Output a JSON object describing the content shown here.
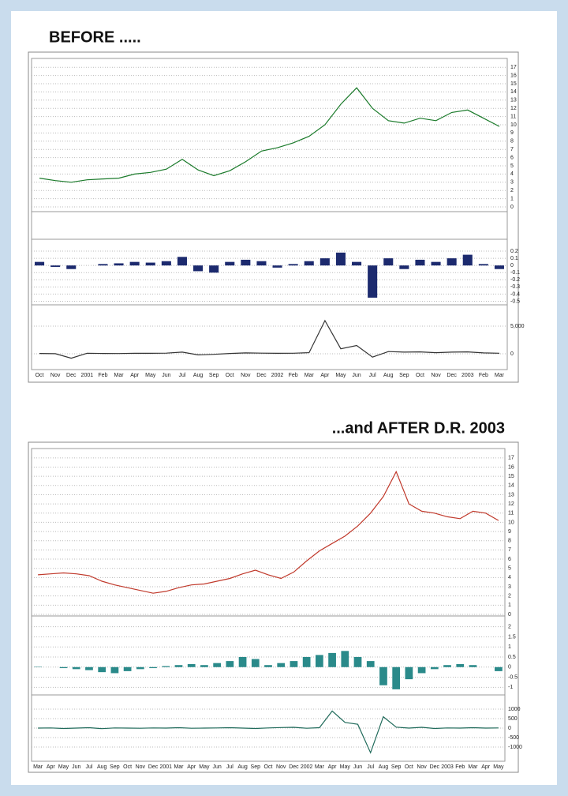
{
  "header": {
    "before": "BEFORE .....",
    "after": "...and AFTER D.R. 2003"
  },
  "chart_data": [
    {
      "type": "line",
      "color": "#1a7a2a",
      "ylim": [
        0,
        17.5
      ],
      "yticks": [
        0,
        1,
        2,
        3,
        4,
        5,
        6,
        7,
        8,
        9,
        10,
        11,
        12,
        13,
        14,
        15,
        16,
        17
      ],
      "grid": true,
      "values": [
        3.5,
        3.2,
        3.0,
        3.3,
        3.4,
        3.5,
        4.0,
        4.2,
        4.6,
        5.8,
        4.5,
        3.8,
        4.4,
        5.5,
        6.8,
        7.2,
        7.8,
        8.6,
        10.0,
        12.5,
        14.5,
        12.0,
        10.5,
        10.2,
        10.8,
        10.5,
        11.5,
        11.8,
        10.8,
        9.8
      ]
    },
    {
      "type": "bar",
      "color": "#1c2a6e",
      "ylim": [
        -0.55,
        0.3
      ],
      "yticks": [
        -0.5,
        -0.4,
        -0.3,
        -0.2,
        -0.1,
        0,
        0.1,
        0.2
      ],
      "grid": true,
      "values": [
        0.05,
        -0.02,
        -0.05,
        0,
        0.02,
        0.03,
        0.05,
        0.04,
        0.06,
        0.12,
        -0.08,
        -0.1,
        0.05,
        0.08,
        0.06,
        -0.03,
        0.02,
        0.06,
        0.1,
        0.18,
        0.05,
        -0.45,
        0.1,
        -0.05,
        0.08,
        0.05,
        0.1,
        0.15,
        0.02,
        -0.05
      ]
    },
    {
      "type": "line",
      "color": "#333333",
      "ylim": [
        -2000,
        8000
      ],
      "yticks": [
        0,
        {
          "value": 5000,
          "label": "5,000"
        }
      ],
      "grid": true,
      "values": [
        50,
        20,
        -800,
        100,
        60,
        40,
        80,
        90,
        120,
        300,
        -200,
        -100,
        60,
        150,
        120,
        80,
        100,
        200,
        6000,
        900,
        1500,
        -600,
        400,
        300,
        350,
        200,
        300,
        350,
        150,
        100
      ],
      "categories": [
        "Oct",
        "Nov",
        "Dec",
        "2001",
        "Feb",
        "Mar",
        "Apr",
        "May",
        "Jun",
        "Jul",
        "Aug",
        "Sep",
        "Oct",
        "Nov",
        "Dec",
        "2002",
        "Feb",
        "Mar",
        "Apr",
        "May",
        "Jun",
        "Jul",
        "Aug",
        "Sep",
        "Oct",
        "Nov",
        "Dec",
        "2003",
        "Feb",
        "Mar"
      ]
    },
    {
      "type": "line",
      "color": "#c0392b",
      "ylim": [
        0,
        17.5
      ],
      "yticks": [
        0,
        1,
        2,
        3,
        4,
        5,
        6,
        7,
        8,
        9,
        10,
        11,
        12,
        13,
        14,
        15,
        16,
        17
      ],
      "grid": true,
      "values": [
        4.3,
        4.4,
        4.5,
        4.4,
        4.2,
        3.6,
        3.2,
        2.9,
        2.6,
        2.3,
        2.5,
        2.9,
        3.2,
        3.3,
        3.6,
        3.9,
        4.4,
        4.8,
        4.3,
        3.9,
        4.6,
        5.8,
        6.9,
        7.7,
        8.5,
        9.6,
        11.0,
        12.8,
        15.5,
        12.0,
        11.2,
        11.0,
        10.6,
        10.4,
        11.2,
        11.0,
        10.2
      ]
    },
    {
      "type": "bar",
      "color": "#2a8a8a",
      "ylim": [
        -1.3,
        2.3
      ],
      "yticks": [
        -1.0,
        -0.5,
        0,
        0.5,
        1.0,
        1.5,
        2.0
      ],
      "grid": true,
      "values": [
        0.02,
        0.0,
        -0.05,
        -0.1,
        -0.15,
        -0.25,
        -0.3,
        -0.2,
        -0.1,
        -0.05,
        0.05,
        0.1,
        0.15,
        0.1,
        0.2,
        0.3,
        0.5,
        0.4,
        0.1,
        0.2,
        0.3,
        0.5,
        0.6,
        0.7,
        0.8,
        0.5,
        0.3,
        -0.9,
        -1.1,
        -0.6,
        -0.3,
        -0.1,
        0.1,
        0.15,
        0.1,
        0.0,
        -0.2
      ]
    },
    {
      "type": "line",
      "color": "#1f6a5a",
      "ylim": [
        -1500,
        1500
      ],
      "yticks": [
        -1000,
        -500,
        0,
        500,
        1000
      ],
      "grid": true,
      "values": [
        0,
        10,
        -20,
        0,
        20,
        -30,
        10,
        0,
        -10,
        10,
        0,
        20,
        -10,
        0,
        10,
        20,
        0,
        -20,
        10,
        30,
        40,
        -10,
        20,
        900,
        300,
        200,
        -1300,
        600,
        50,
        0,
        40,
        -20,
        10,
        0,
        20,
        0,
        10
      ],
      "categories": [
        "Mar",
        "Apr",
        "May",
        "Jun",
        "Jul",
        "Aug",
        "Sep",
        "Oct",
        "Nov",
        "Dec",
        "2001",
        "Mar",
        "Apr",
        "May",
        "Jun",
        "Jul",
        "Aug",
        "Sep",
        "Oct",
        "Nov",
        "Dec",
        "2002",
        "Mar",
        "Apr",
        "May",
        "Jun",
        "Jul",
        "Aug",
        "Sep",
        "Oct",
        "Nov",
        "Dec",
        "2003",
        "Feb",
        "Mar",
        "Apr",
        "May"
      ]
    }
  ]
}
